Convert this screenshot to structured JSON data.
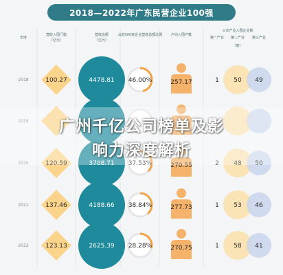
{
  "colors": {
    "banner": "#2f7b87",
    "diamond": "#fbd48b",
    "circle": "#1e8a9c",
    "ring": "#f0a447",
    "person": "#f4b26b",
    "sec2": "#fae3b1",
    "sec3": "#c9d5ec"
  },
  "overlay": {
    "line1": "广州千亿公司榜单及影",
    "line2": "响力深度解析"
  },
  "chart_data": {
    "type": "table",
    "title": "2018—2022年广东民营企业100强",
    "columns": [
      {
        "key": "year",
        "label": "年度"
      },
      {
        "key": "threshold",
        "label": "营收入围门槛",
        "unit": "（亿元）"
      },
      {
        "key": "revenue",
        "label": "营收总额",
        "unit": "（亿元）"
      },
      {
        "key": "ratio",
        "label": "占前500家企业营收总额比例"
      },
      {
        "key": "avg",
        "label": "户均入围户数"
      },
      {
        "key": "industry",
        "label": "三次产业入围企业数",
        "unit": "（家）"
      }
    ],
    "industry_subheaders": [
      "第一产业",
      "第二产业",
      "第三产业"
    ],
    "rows": [
      {
        "year": "2018",
        "threshold": "100.27",
        "revenue": "4478.81",
        "ratio": "46.00%",
        "ratio_value": 46.0,
        "avg": "257.17",
        "sec1": "1",
        "sec2": "50",
        "sec3": "49"
      },
      {
        "year": "2019",
        "threshold": "",
        "revenue": "",
        "ratio": "",
        "ratio_value": null,
        "avg": "",
        "sec1": "",
        "sec2": "",
        "sec3": ""
      },
      {
        "year": "2020",
        "threshold": "120.59",
        "revenue": "3708.71",
        "ratio": "37.53%",
        "ratio_value": 37.53,
        "avg": "270.55",
        "sec1": "2",
        "sec2": "48",
        "sec3": "50"
      },
      {
        "year": "2021",
        "threshold": "137.46",
        "revenue": "4188.66",
        "ratio": "38.84%",
        "ratio_value": 38.84,
        "avg": "277.73",
        "sec1": "1",
        "sec2": "53",
        "sec3": "46"
      },
      {
        "year": "2022",
        "threshold": "123.13",
        "revenue": "2625.39",
        "ratio": "28.28%",
        "ratio_value": 28.28,
        "avg": "270.75",
        "sec1": "1",
        "sec2": "58",
        "sec3": "41"
      }
    ]
  }
}
